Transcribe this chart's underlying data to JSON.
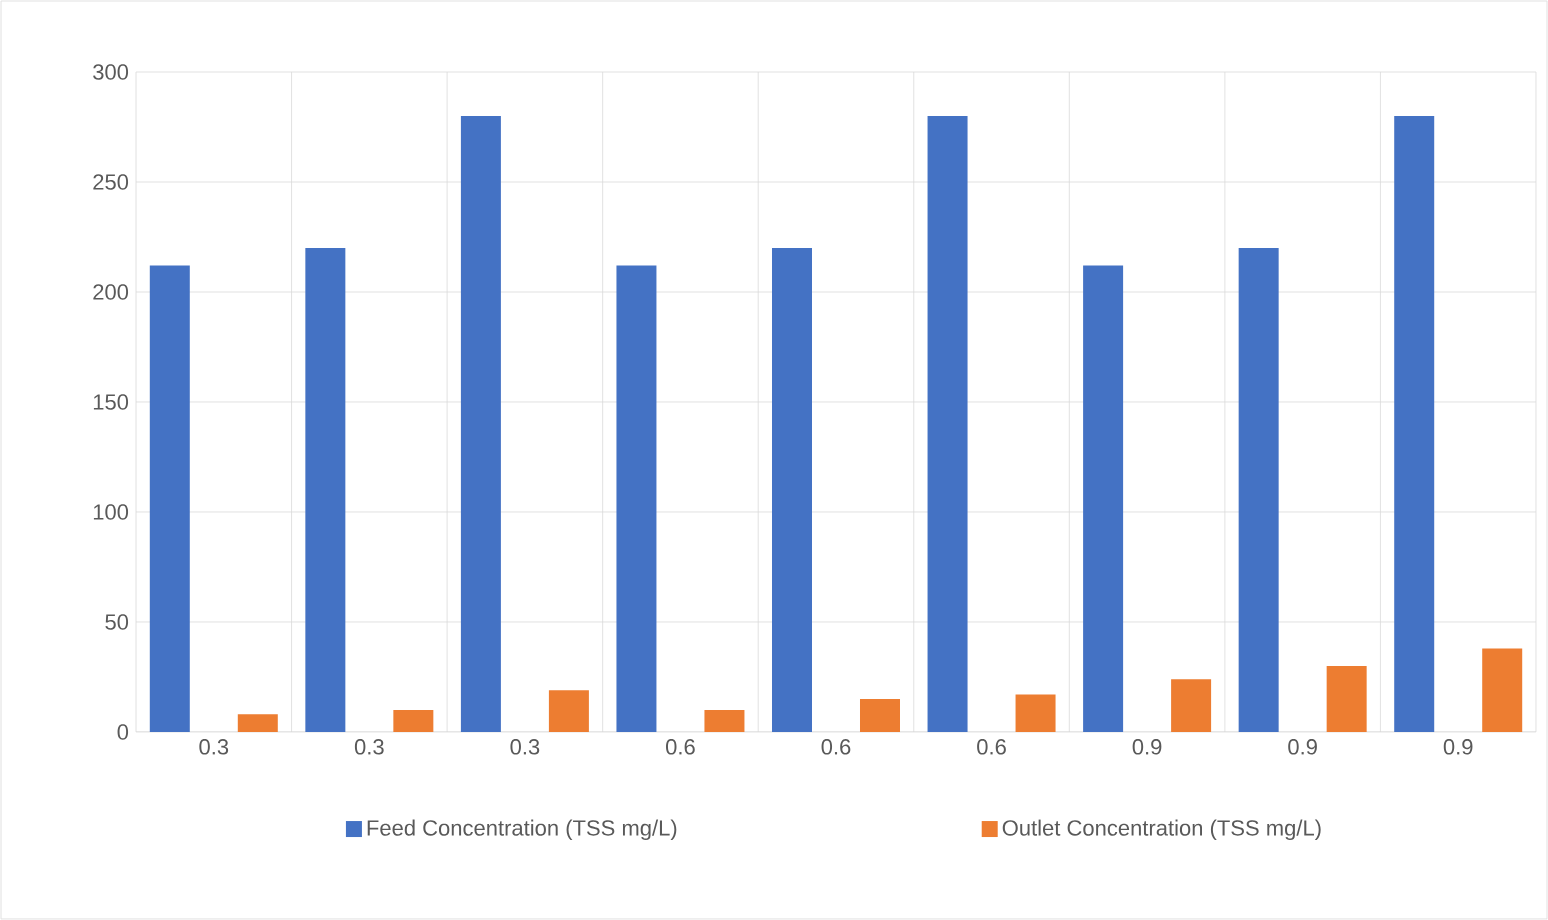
{
  "chart_data": {
    "type": "bar",
    "categories": [
      "0.3",
      "0.3",
      "0.3",
      "0.6",
      "0.6",
      "0.6",
      "0.9",
      "0.9",
      "0.9"
    ],
    "series": [
      {
        "name": "Feed Concentration (TSS mg/L)",
        "color": "#4472c4",
        "values": [
          212,
          220,
          280,
          212,
          220,
          280,
          212,
          220,
          280
        ]
      },
      {
        "name": "Outlet Concentration (TSS mg/L)",
        "color": "#ed7d31",
        "values": [
          8,
          10,
          19,
          10,
          15,
          17,
          24,
          30,
          38
        ]
      }
    ],
    "ylim": [
      0,
      300
    ],
    "yticks": [
      0,
      50,
      100,
      150,
      200,
      250,
      300
    ],
    "grid": true,
    "legend": "bottom"
  }
}
